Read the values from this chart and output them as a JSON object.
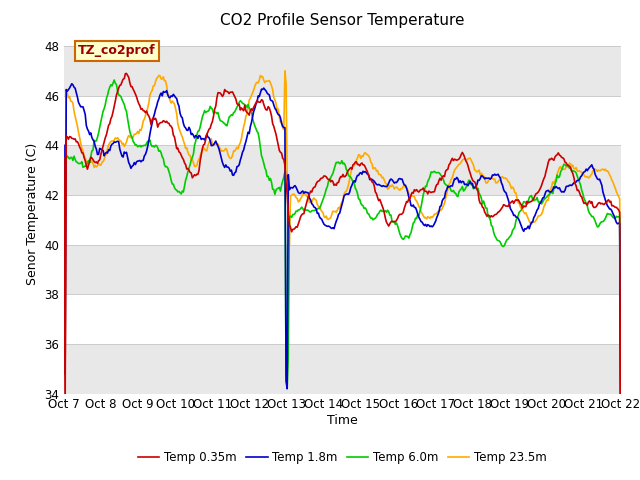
{
  "title": "CO2 Profile Sensor Temperature",
  "ylabel": "Senor Temperature (C)",
  "xlabel": "Time",
  "label_box_text": "TZ_co2prof",
  "ylim": [
    34,
    48.5
  ],
  "yticks": [
    34,
    36,
    38,
    40,
    42,
    44,
    46,
    48
  ],
  "xtick_labels": [
    "Oct 7",
    "Oct 8",
    "Oct 9",
    "Oct 10",
    "Oct 11",
    "Oct 12",
    "Oct 13",
    "Oct 14",
    "Oct 15",
    "Oct 16",
    "Oct 17",
    "Oct 18",
    "Oct 19",
    "Oct 20",
    "Oct 21",
    "Oct 22"
  ],
  "n_points": 500,
  "colors": {
    "red": "#cc0000",
    "blue": "#0000cc",
    "green": "#00cc00",
    "orange": "#ffaa00"
  },
  "legend_labels": [
    "Temp 0.35m",
    "Temp 1.8m",
    "Temp 6.0m",
    "Temp 23.5m"
  ],
  "bg_band_color": "#e8e8e8",
  "title_fontsize": 11,
  "axis_label_fontsize": 9,
  "tick_fontsize": 8.5
}
